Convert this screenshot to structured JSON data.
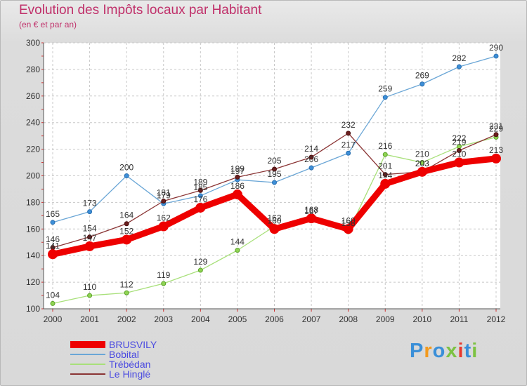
{
  "header": {
    "title": "Evolution des Impôts locaux par Habitant",
    "subtitle": "(en € et par an)"
  },
  "logo": {
    "text": "Proxiti",
    "colors": [
      "#3a8fd8",
      "#f29a1e",
      "#3a8fd8",
      "#7cc242",
      "#e8392d",
      "#3a8fd8",
      "#7cc242"
    ]
  },
  "chart_data": {
    "type": "line",
    "title": "Evolution des Impôts locaux par Habitant",
    "subtitle": "(en € et par an)",
    "xlabel": "",
    "ylabel": "",
    "ylim": [
      100,
      300
    ],
    "yticks": [
      100,
      120,
      140,
      160,
      180,
      200,
      220,
      240,
      260,
      280,
      300
    ],
    "grid": true,
    "legend_position": "bottom-left",
    "categories": [
      "2000",
      "2001",
      "2002",
      "2003",
      "2004",
      "2005",
      "2006",
      "2007",
      "2008",
      "2009",
      "2010",
      "2011",
      "2012"
    ],
    "series": [
      {
        "name": "BRUSVILY",
        "color": "#ee0000",
        "values": [
          141,
          147,
          152,
          162,
          176,
          186,
          160,
          168,
          160,
          194,
          203,
          210,
          213
        ]
      },
      {
        "name": "Bobital",
        "color": "#6aa6d6",
        "values": [
          165,
          173,
          200,
          179,
          185,
          197,
          195,
          206,
          217,
          259,
          269,
          282,
          290
        ]
      },
      {
        "name": "Trébédan",
        "color": "#a8e07a",
        "values": [
          104,
          110,
          112,
          119,
          129,
          144,
          162,
          167,
          158,
          216,
          210,
          222,
          229
        ]
      },
      {
        "name": "Le Hinglé",
        "color": "#8a3434",
        "values": [
          146,
          154,
          164,
          181,
          189,
          199,
          205,
          214,
          232,
          201,
          203,
          219,
          231
        ]
      }
    ]
  }
}
